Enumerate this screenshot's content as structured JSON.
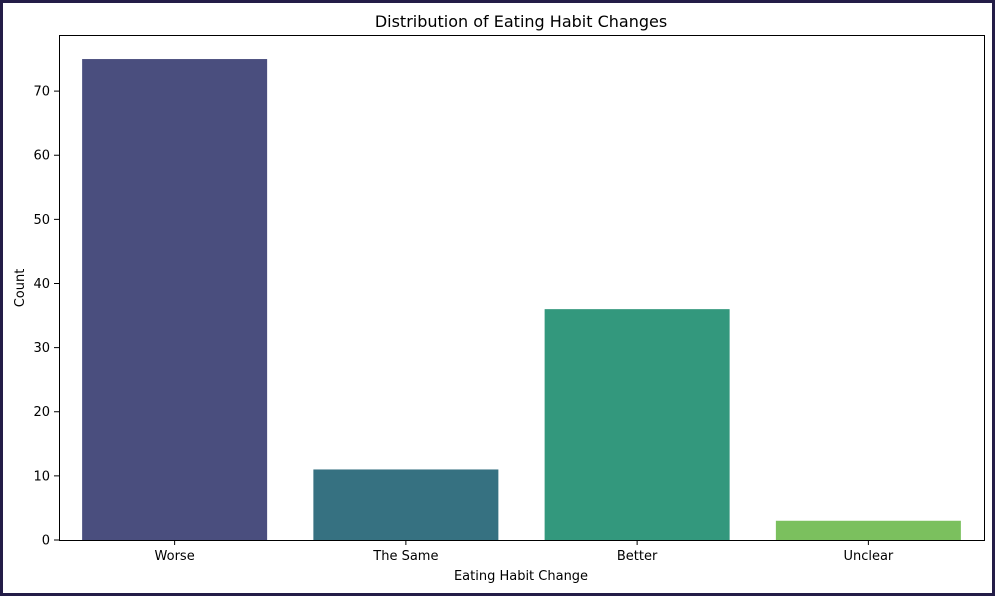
{
  "chart_data": {
    "type": "bar",
    "title": "Distribution of Eating Habit Changes",
    "xlabel": "Eating Habit Change",
    "ylabel": "Count",
    "categories": [
      "Worse",
      "The Same",
      "Better",
      "Unclear"
    ],
    "values": [
      75,
      11,
      36,
      3
    ],
    "colors": [
      "#4a4e7e",
      "#367181",
      "#33987d",
      "#7bc05e"
    ],
    "ylim": [
      0,
      78.75
    ],
    "yticks": [
      0,
      10,
      20,
      30,
      40,
      50,
      60,
      70
    ],
    "grid": false,
    "legend": "none"
  }
}
